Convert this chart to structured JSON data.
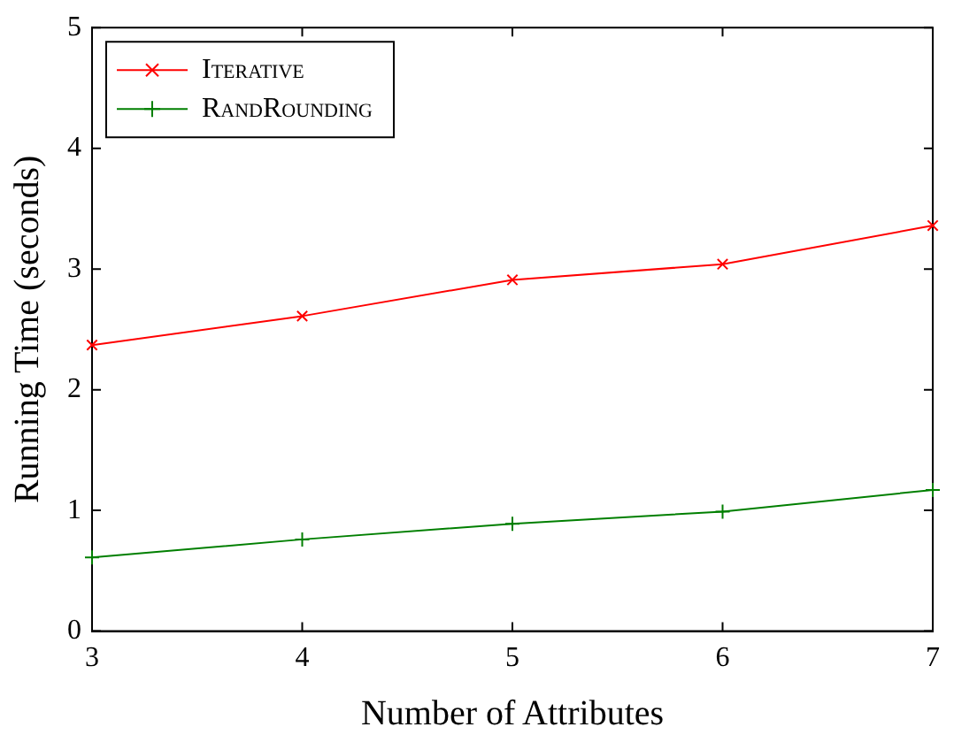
{
  "chart_data": {
    "type": "line",
    "xlabel": "Number of Attributes",
    "ylabel": "Running Time (seconds)",
    "x": [
      3,
      4,
      5,
      6,
      7
    ],
    "xlim": [
      3,
      7
    ],
    "xticks": [
      3,
      4,
      5,
      6,
      7
    ],
    "ylim": [
      0,
      5
    ],
    "yticks": [
      0,
      1,
      2,
      3,
      4,
      5
    ],
    "grid": false,
    "legend": "top left",
    "series": [
      {
        "name": "Iterative",
        "color": "#ff0000",
        "marker": "cross",
        "values": [
          2.37,
          2.61,
          2.91,
          3.04,
          3.36
        ]
      },
      {
        "name": "RandRounding",
        "color": "#007f00",
        "marker": "plus",
        "values": [
          0.61,
          0.76,
          0.89,
          0.99,
          1.17
        ]
      }
    ]
  }
}
